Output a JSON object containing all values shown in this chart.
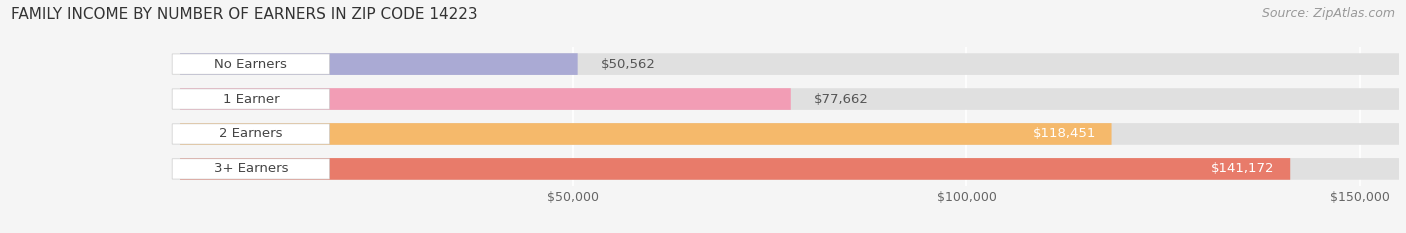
{
  "title": "FAMILY INCOME BY NUMBER OF EARNERS IN ZIP CODE 14223",
  "source": "Source: ZipAtlas.com",
  "categories": [
    "No Earners",
    "1 Earner",
    "2 Earners",
    "3+ Earners"
  ],
  "values": [
    50562,
    77662,
    118451,
    141172
  ],
  "bar_colors": [
    "#aaaad4",
    "#f29db5",
    "#f5b96b",
    "#e87b6a"
  ],
  "xlim_left": -22000,
  "xlim_right": 155000,
  "xticks": [
    50000,
    100000,
    150000
  ],
  "xtick_labels": [
    "$50,000",
    "$100,000",
    "$150,000"
  ],
  "background_color": "#f5f5f5",
  "bar_bg_color": "#e0e0e0",
  "title_fontsize": 11,
  "source_fontsize": 9,
  "label_fontsize": 9.5,
  "tick_fontsize": 9,
  "bar_height": 0.62
}
